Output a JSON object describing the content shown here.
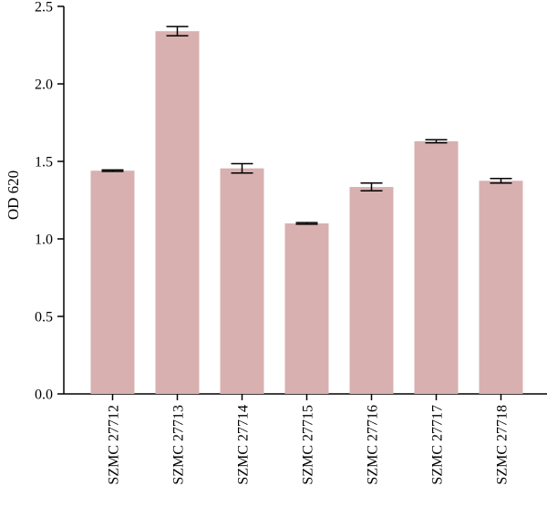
{
  "chart_data": {
    "type": "bar",
    "title": "",
    "xlabel": "",
    "ylabel": "OD 620",
    "ylim": [
      0,
      2.5
    ],
    "yticks": [
      "0.0",
      "0.5",
      "1.0",
      "1.5",
      "2.0",
      "2.5"
    ],
    "categories": [
      "SZMC 27712",
      "SZMC 27713",
      "SZMC 27714",
      "SZMC 27715",
      "SZMC 27716",
      "SZMC 27717",
      "SZMC 27718"
    ],
    "values": [
      1.44,
      2.34,
      1.455,
      1.1,
      1.335,
      1.63,
      1.375
    ],
    "errors": [
      0.005,
      0.03,
      0.03,
      0.005,
      0.025,
      0.01,
      0.015
    ],
    "bar_color": "#d8b0b0",
    "grid": false,
    "legend": "none"
  }
}
